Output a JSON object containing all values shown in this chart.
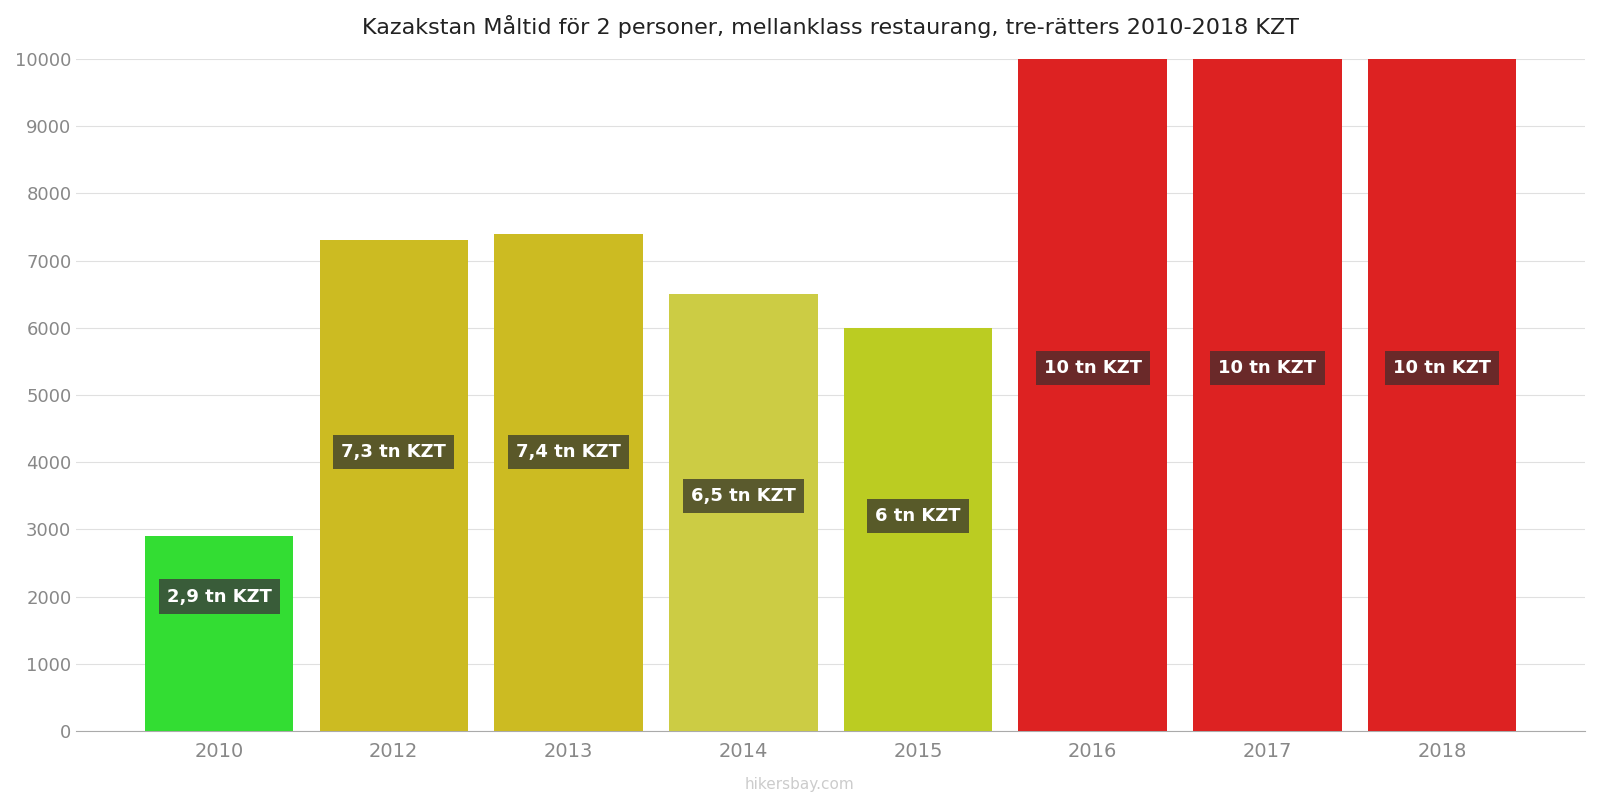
{
  "title": "Kazakstan Måltid för 2 personer, mellanklass restaurang, tre-rätters 2010-2018 KZT",
  "years": [
    "2010",
    "2012",
    "2013",
    "2014",
    "2015",
    "2016",
    "2017",
    "2018"
  ],
  "values": [
    2900,
    7300,
    7400,
    6500,
    6000,
    10000,
    10000,
    10000
  ],
  "bar_colors": [
    "#33dd33",
    "#ccbb22",
    "#ccbb22",
    "#cccc44",
    "#bbcc22",
    "#dd2222",
    "#dd2222",
    "#dd2222"
  ],
  "label_texts": [
    "2,9 tn KZT",
    "7,3 tn KZT",
    "7,4 tn KZT",
    "6,5 tn KZT",
    "6 tn KZT",
    "10 tn KZT",
    "10 tn KZT",
    "10 tn KZT"
  ],
  "label_box_colors": [
    "#3a4a3a",
    "#4a4a2a",
    "#4a4a2a",
    "#4a4a2a",
    "#4a4a2a",
    "#5a2a2a",
    "#5a2a2a",
    "#5a2a2a"
  ],
  "label_y_values": [
    2000,
    4150,
    4150,
    3500,
    3200,
    5400,
    5400,
    5400
  ],
  "ylim": [
    0,
    10000
  ],
  "yticks": [
    0,
    1000,
    2000,
    3000,
    4000,
    5000,
    6000,
    7000,
    8000,
    9000,
    10000
  ],
  "bar_width": 0.85,
  "watermark": "hikersbay.com",
  "background_color": "#ffffff"
}
